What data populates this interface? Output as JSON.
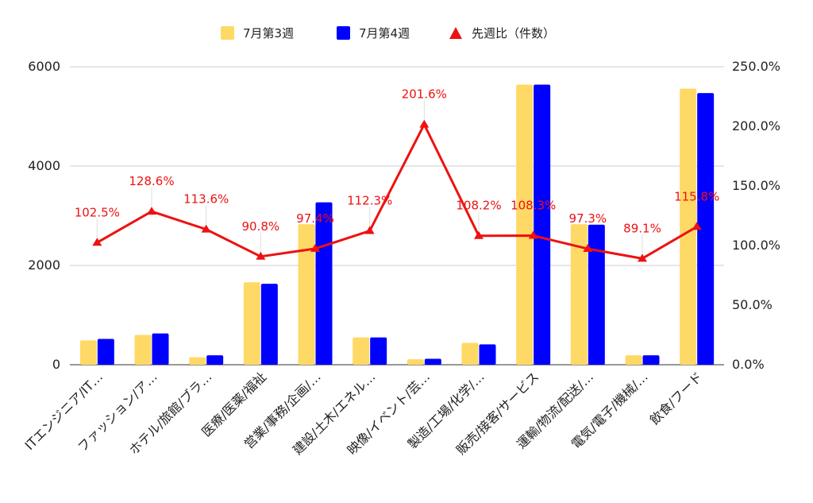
{
  "chart_data": {
    "type": "bar",
    "categories": [
      "ITエンジニア/IT…",
      "ファッション/ア…",
      "ホテル/旅館/ブラ…",
      "医療/医薬/福祉",
      "営業/事務/企画/…",
      "建設/土木/エネル…",
      "映像/イベント/芸…",
      "製造/工場/化学/…",
      "販売/接客/サービス",
      "運輸/物流/配送/…",
      "電気/電子/機械/…",
      "飲食/フード"
    ],
    "series": [
      {
        "name": "7月第3週",
        "type": "bar",
        "axis": "left",
        "color": "#ffd966",
        "values": [
          490,
          600,
          150,
          1660,
          2830,
          550,
          110,
          440,
          5640,
          2830,
          190,
          5560
        ]
      },
      {
        "name": "7月第4週",
        "type": "bar",
        "axis": "left",
        "color": "#0000ff",
        "values": [
          520,
          630,
          190,
          1630,
          3270,
          550,
          120,
          410,
          5640,
          2820,
          190,
          5470
        ]
      },
      {
        "name": "先週比（件数）",
        "type": "line",
        "axis": "right",
        "color": "#ee1111",
        "marker": "triangle",
        "values": [
          102.5,
          128.6,
          113.6,
          90.8,
          97.4,
          112.3,
          201.6,
          108.2,
          108.3,
          97.3,
          89.1,
          115.8
        ],
        "labels": [
          "102.5%",
          "128.6%",
          "113.6%",
          "90.8%",
          "97.4%",
          "112.3%",
          "201.6%",
          "108.2%",
          "108.3%",
          "97.3%",
          "89.1%",
          "115.8%"
        ]
      }
    ],
    "y_left": {
      "min": 0,
      "max": 6000,
      "ticks": [
        "0",
        "2000",
        "4000",
        "6000"
      ]
    },
    "y_right": {
      "min": 0,
      "max": 250,
      "ticks": [
        "0.0%",
        "50.0%",
        "100.0%",
        "150.0%",
        "200.0%",
        "250.0%"
      ]
    },
    "grid": true,
    "legend_position": "top"
  }
}
